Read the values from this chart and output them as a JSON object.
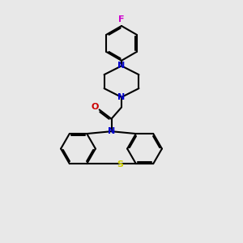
{
  "background_color": "#e8e8e8",
  "bond_color": "#000000",
  "N_color": "#0000cc",
  "O_color": "#cc0000",
  "S_color": "#cccc00",
  "F_color": "#cc00cc",
  "line_width": 1.5,
  "dbo": 0.055,
  "figsize": [
    3.0,
    3.0
  ],
  "dpi": 100,
  "xlim": [
    0,
    10
  ],
  "ylim": [
    0,
    10
  ]
}
